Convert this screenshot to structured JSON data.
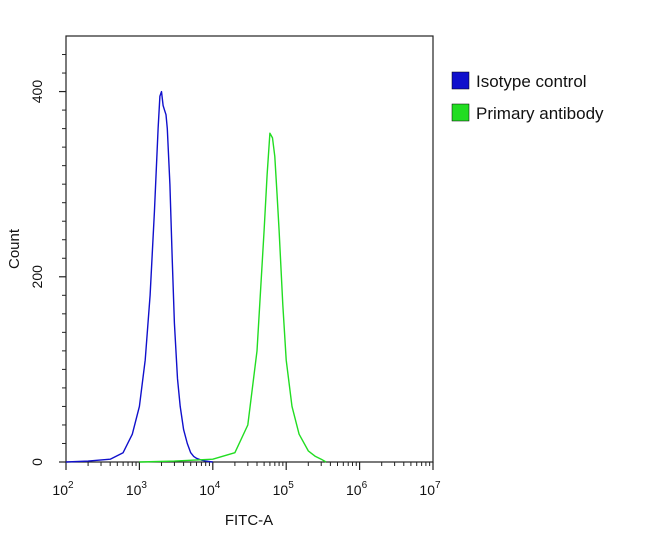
{
  "chart_data": {
    "type": "line",
    "xlabel": "FITC-A",
    "ylabel": "Count",
    "x_scale": "log",
    "xlim": [
      100,
      10000000
    ],
    "ylim": [
      0,
      460
    ],
    "x_ticks": [
      {
        "value": 100,
        "base": "10",
        "exp": "2"
      },
      {
        "value": 1000,
        "base": "10",
        "exp": "3"
      },
      {
        "value": 10000,
        "base": "10",
        "exp": "4"
      },
      {
        "value": 100000,
        "base": "10",
        "exp": "5"
      },
      {
        "value": 1000000,
        "base": "10",
        "exp": "6"
      },
      {
        "value": 10000000,
        "base": "10",
        "exp": "7"
      }
    ],
    "y_ticks": [
      {
        "value": 0,
        "label": "0"
      },
      {
        "value": 200,
        "label": "200"
      },
      {
        "value": 400,
        "label": "400"
      }
    ],
    "grid": false,
    "legend_position": "top-right, outside plot",
    "series": [
      {
        "name": "Isotype control",
        "color": "#1010cc",
        "x": [
          100,
          200,
          400,
          600,
          800,
          1000,
          1200,
          1400,
          1600,
          1800,
          1900,
          2000,
          2100,
          2200,
          2300,
          2400,
          2600,
          2800,
          3000,
          3300,
          3600,
          4000,
          4500,
          5000,
          5500,
          6000,
          7000,
          8000,
          10000
        ],
        "y": [
          0,
          1,
          3,
          10,
          30,
          60,
          110,
          180,
          270,
          360,
          395,
          400,
          385,
          380,
          375,
          360,
          300,
          220,
          150,
          90,
          60,
          35,
          20,
          10,
          6,
          4,
          2,
          1,
          0
        ]
      },
      {
        "name": "Primary antibody",
        "color": "#22dd22",
        "x": [
          1000,
          3000,
          10000,
          20000,
          30000,
          40000,
          50000,
          55000,
          60000,
          65000,
          70000,
          75000,
          80000,
          90000,
          100000,
          120000,
          150000,
          200000,
          250000,
          300000,
          350000
        ],
        "y": [
          0,
          1,
          3,
          10,
          40,
          120,
          250,
          310,
          355,
          350,
          330,
          290,
          250,
          170,
          110,
          60,
          30,
          12,
          6,
          3,
          0
        ]
      }
    ]
  }
}
